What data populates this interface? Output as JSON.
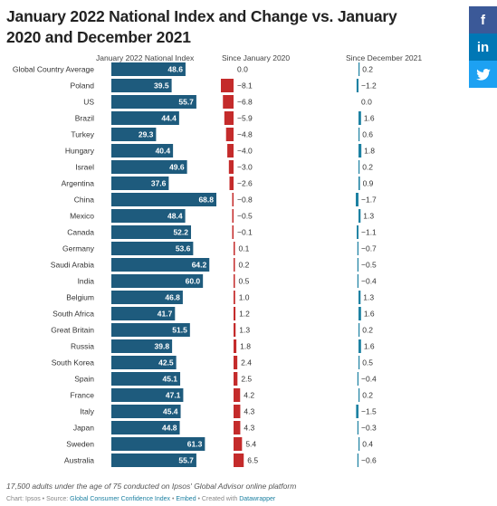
{
  "title": "January 2022 National Index and Change vs. January 2020 and December 2021",
  "share": {
    "facebook": "f",
    "linkedin": "in",
    "twitter": "twitter-bird"
  },
  "columns": {
    "index": "January 2022 National Index",
    "since2020": "Since January 2020",
    "since2021": "Since December 2021"
  },
  "notes": "17,500 adults under the age of 75 conducted on Ipsos' Global Advisor online platform",
  "credits": {
    "chart": "Chart: Ipsos • Source: ",
    "source": "Global Consumer Confidence Index",
    "sep1": " • ",
    "embed": "Embed",
    "sep2": " • Created with ",
    "tool": "Datawrapper"
  },
  "colors": {
    "bar": "#1e5b7d",
    "negative": "#c42b2b",
    "positive": "#1d81a2"
  },
  "chart_data": {
    "type": "table",
    "rows": [
      {
        "country": "Global Country Average",
        "index": 48.6,
        "since2020": "0.0",
        "since2021": "0.2"
      },
      {
        "country": "Poland",
        "index": 39.5,
        "since2020": "−8.1",
        "since2021": "−1.2"
      },
      {
        "country": "US",
        "index": 55.7,
        "since2020": "−6.8",
        "since2021": "0.0"
      },
      {
        "country": "Brazil",
        "index": 44.4,
        "since2020": "−5.9",
        "since2021": "1.6"
      },
      {
        "country": "Turkey",
        "index": 29.3,
        "since2020": "−4.8",
        "since2021": "0.6"
      },
      {
        "country": "Hungary",
        "index": 40.4,
        "since2020": "−4.0",
        "since2021": "1.8"
      },
      {
        "country": "Israel",
        "index": 49.6,
        "since2020": "−3.0",
        "since2021": "0.2"
      },
      {
        "country": "Argentina",
        "index": 37.6,
        "since2020": "−2.6",
        "since2021": "0.9"
      },
      {
        "country": "China",
        "index": 68.8,
        "since2020": "−0.8",
        "since2021": "−1.7"
      },
      {
        "country": "Mexico",
        "index": 48.4,
        "since2020": "−0.5",
        "since2021": "1.3"
      },
      {
        "country": "Canada",
        "index": 52.2,
        "since2020": "−0.1",
        "since2021": "−1.1"
      },
      {
        "country": "Germany",
        "index": 53.6,
        "since2020": "0.1",
        "since2021": "−0.7"
      },
      {
        "country": "Saudi Arabia",
        "index": 64.2,
        "since2020": "0.2",
        "since2021": "−0.5"
      },
      {
        "country": "India",
        "index": 60.0,
        "since2020": "0.5",
        "since2021": "−0.4"
      },
      {
        "country": "Belgium",
        "index": 46.8,
        "since2020": "1.0",
        "since2021": "1.3"
      },
      {
        "country": "South Africa",
        "index": 41.7,
        "since2020": "1.2",
        "since2021": "1.6"
      },
      {
        "country": "Great Britain",
        "index": 51.5,
        "since2020": "1.3",
        "since2021": "0.2"
      },
      {
        "country": "Russia",
        "index": 39.8,
        "since2020": "1.8",
        "since2021": "1.6"
      },
      {
        "country": "South Korea",
        "index": 42.5,
        "since2020": "2.4",
        "since2021": "0.5"
      },
      {
        "country": "Spain",
        "index": 45.1,
        "since2020": "2.5",
        "since2021": "−0.4"
      },
      {
        "country": "France",
        "index": 47.1,
        "since2020": "4.2",
        "since2021": "0.2"
      },
      {
        "country": "Italy",
        "index": 45.4,
        "since2020": "4.3",
        "since2021": "−1.5"
      },
      {
        "country": "Japan",
        "index": 44.8,
        "since2020": "4.3",
        "since2021": "−0.3"
      },
      {
        "country": "Sweden",
        "index": 61.3,
        "since2020": "5.4",
        "since2021": "0.4"
      },
      {
        "country": "Australia",
        "index": 55.7,
        "since2020": "6.5",
        "since2021": "−0.6"
      }
    ]
  }
}
